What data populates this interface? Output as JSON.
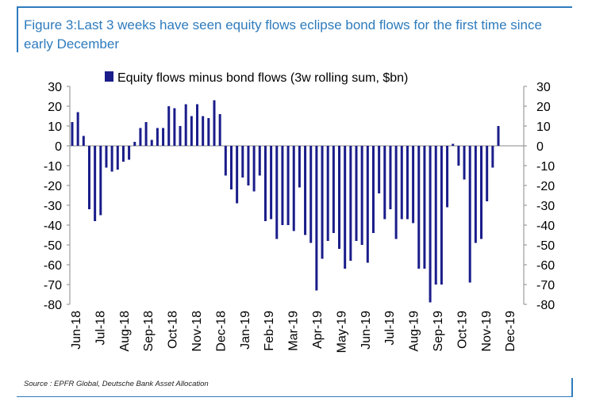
{
  "figure": {
    "title": "Figure 3:Last 3 weeks have seen equity flows eclipse bond flows for the first time since early December",
    "source": "Source : EPFR Global, Deutsche Bank Asset Allocation"
  },
  "colors": {
    "bar": "#1a1d8a",
    "frame": "#2e7bbd"
  },
  "chart_data": {
    "type": "bar",
    "legend": "Equity flows minus bond flows (3w rolling sum, $bn)",
    "legend_position": "top",
    "ylim": [
      -80,
      30
    ],
    "yticks": [
      30,
      20,
      10,
      0,
      -10,
      -20,
      -30,
      -40,
      -50,
      -60,
      -70,
      -80
    ],
    "ytick_labels": [
      "30",
      "20",
      "10",
      "0",
      "-10",
      "-20",
      "-30",
      "-40",
      "-50",
      "-60",
      "-70",
      "-80"
    ],
    "y_axes": "both",
    "grid": false,
    "x_labels": [
      "Jun-18",
      "Jul-18",
      "Aug-18",
      "Sep-18",
      "Oct-18",
      "Nov-18",
      "Dec-18",
      "Jan-19",
      "Feb-19",
      "Mar-19",
      "Apr-19",
      "May-19",
      "Jun-19",
      "Jul-19",
      "Aug-19",
      "Sep-19",
      "Oct-19",
      "Nov-19",
      "Dec-19"
    ],
    "series": [
      {
        "values": [
          12,
          17,
          5,
          -32,
          -38,
          -35,
          -11,
          -13,
          -12,
          -8,
          -7,
          2,
          9,
          12,
          3,
          9,
          9,
          20,
          19,
          10,
          21,
          15,
          21,
          15,
          14,
          23,
          16,
          -15,
          -22,
          -29,
          -16,
          -20,
          -23,
          -15,
          -38,
          -37,
          -47,
          -40,
          -40,
          -43,
          -21,
          -45,
          -49,
          -73,
          -57,
          -48,
          -44,
          -52,
          -62,
          -58,
          -48,
          -50,
          -59,
          -44,
          -24,
          -37,
          -32,
          -47,
          -37,
          -37,
          -39,
          -62,
          -62,
          -79,
          -70,
          -70,
          -31,
          1,
          -10,
          -17,
          -69,
          -49,
          -47,
          -28,
          -11,
          10
        ]
      }
    ]
  }
}
